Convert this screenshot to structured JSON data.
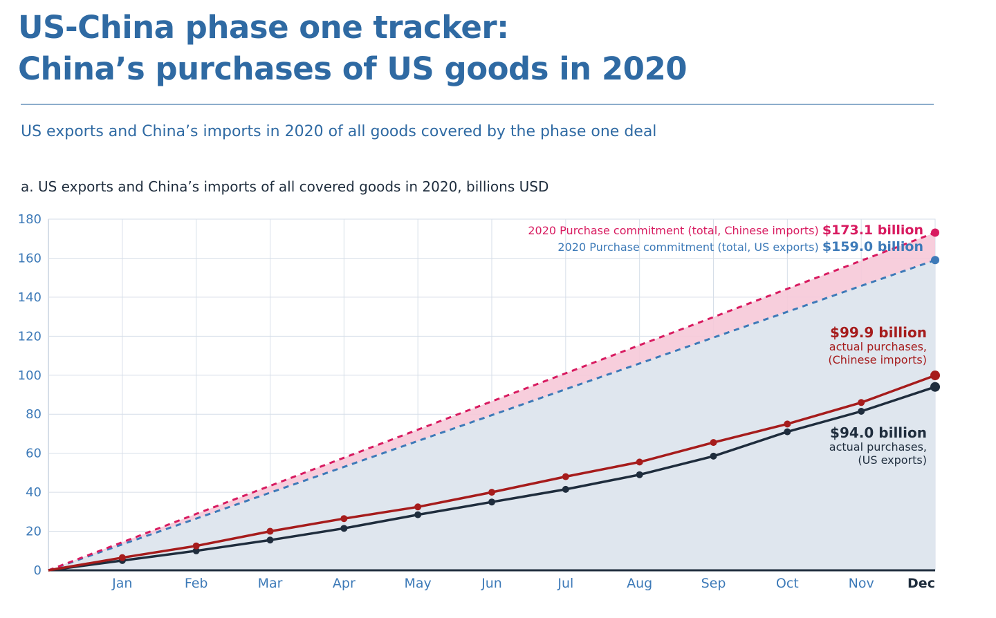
{
  "header": {
    "title_line1": "US-China phase one tracker:",
    "title_line2": "China’s purchases of US goods in 2020",
    "subtitle": "US exports and China’s imports in 2020 of all goods covered by the phase one deal"
  },
  "chart_data": {
    "type": "line",
    "title": "a. US exports and China’s imports of all covered goods in 2020, billions USD",
    "xlabel": "",
    "ylabel": "",
    "categories": [
      "",
      "Jan",
      "Feb",
      "Mar",
      "Apr",
      "May",
      "Jun",
      "Jul",
      "Aug",
      "Sep",
      "Oct",
      "Nov",
      "Dec"
    ],
    "ylim": [
      0,
      180
    ],
    "yticks": [
      0,
      20,
      40,
      60,
      80,
      100,
      120,
      140,
      160,
      180
    ],
    "grid": true,
    "series": [
      {
        "name": "2020 Purchase commitment (total, Chinese imports)",
        "style": "dashed",
        "color": "#d81b60",
        "values": [
          0,
          14.4,
          28.9,
          43.3,
          57.7,
          72.1,
          86.6,
          101.0,
          115.4,
          129.8,
          144.3,
          158.7,
          173.1
        ]
      },
      {
        "name": "2020 Purchase commitment (total, US exports)",
        "style": "dashed",
        "color": "#3d7ab8",
        "values": [
          0,
          13.3,
          26.5,
          39.8,
          53.0,
          66.3,
          79.5,
          92.8,
          106.0,
          119.3,
          132.5,
          145.8,
          159.0
        ]
      },
      {
        "name": "actual purchases, (Chinese imports)",
        "style": "solid",
        "color": "#a61c1c",
        "values": [
          0,
          6.5,
          12.5,
          20.0,
          26.5,
          32.5,
          40.0,
          48.0,
          55.5,
          65.5,
          75.0,
          86.0,
          99.9
        ]
      },
      {
        "name": "actual purchases, (US exports)",
        "style": "solid",
        "color": "#1f2d3d",
        "values": [
          0,
          5.0,
          10.0,
          15.5,
          21.5,
          28.5,
          35.0,
          41.5,
          49.0,
          58.5,
          71.0,
          81.5,
          94.0
        ]
      }
    ],
    "annotations": {
      "cn_commit_label": "2020 Purchase commitment (total, Chinese imports)",
      "cn_commit_value": "$173.1 billion",
      "us_commit_label": "2020 Purchase commitment (total, US exports)",
      "us_commit_value": "$159.0 billion",
      "cn_actual_value": "$99.9 billion",
      "cn_actual_line1": "actual purchases,",
      "cn_actual_line2": "(Chinese imports)",
      "us_actual_value": "$94.0 billion",
      "us_actual_line1": "actual purchases,",
      "us_actual_line2": "(US exports)"
    },
    "colors": {
      "pink": "#d81b60",
      "blue": "#3d7ab8",
      "red": "#a61c1c",
      "navy": "#1f2d3d",
      "pink_fill": "#f6c9d8",
      "blue_fill": "#dfe6ee",
      "axis_text": "#3d7ab8",
      "grid": "#d6dee8"
    }
  }
}
